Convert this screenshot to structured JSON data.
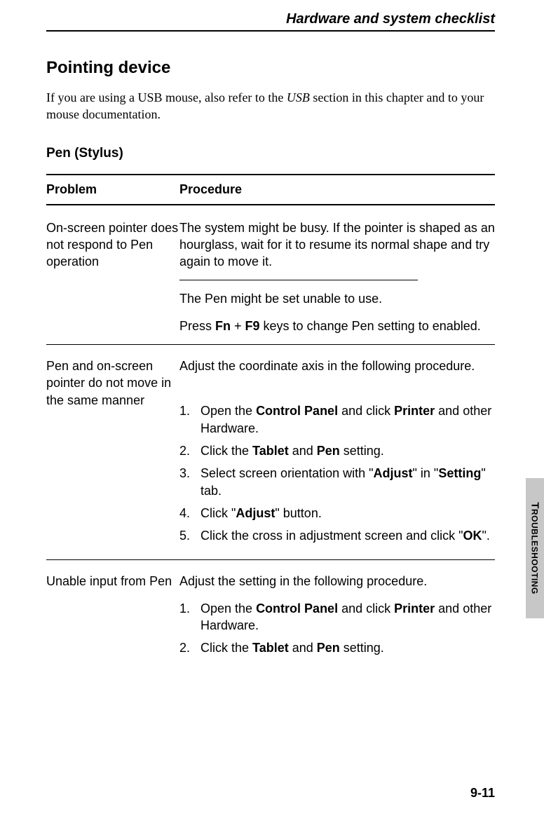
{
  "chapter_header": "Hardware and system checklist",
  "section_title": "Pointing  device",
  "intro": {
    "prefix": "If you are using a USB mouse, also refer to the ",
    "italic": "USB",
    "suffix": " section in this chapter and to your mouse documentation."
  },
  "subsection_title": "Pen (Stylus)",
  "table_header": {
    "problem": "Problem",
    "procedure": "Procedure"
  },
  "rows": [
    {
      "problem": "On-screen pointer does not respond to Pen operation",
      "procedure_para1_plain": "The system might be busy. If the pointer is shaped as an hourglass, wait for it to resume its normal shape and try again to move it.",
      "procedure_para2_plain": "The  Pen might be set unable to use.",
      "procedure_para3_prefix": "Press ",
      "procedure_para3_b1": "Fn",
      "procedure_para3_mid": " + ",
      "procedure_para3_b2": "F9",
      "procedure_para3_suffix": " keys to change Pen setting to enabled."
    },
    {
      "problem": "Pen and on-screen pointer do not move in the same manner",
      "procedure_intro": "Adjust the coordinate axis in the following procedure.",
      "steps": {
        "s1_p1": "Open the ",
        "s1_b1": "Control Panel",
        "s1_p2": " and click ",
        "s1_b2": "Printer",
        "s1_p3": " and other Hardware.",
        "s2_p1": "Click the ",
        "s2_b1": "Tablet",
        "s2_p2": " and ",
        "s2_b2": "Pen",
        "s2_p3": " setting.",
        "s3_p1": "Select screen orientation with \"",
        "s3_b1": "Adjust",
        "s3_p2": "\" in \"",
        "s3_b2": "Setting",
        "s3_p3": "\" tab.",
        "s4_p1": "Click \"",
        "s4_b1": "Adjust",
        "s4_p2": "\" button.",
        "s5_p1": "Click the cross in adjustment screen and click \"",
        "s5_b1": "OK",
        "s5_p2": "\"."
      }
    },
    {
      "problem": "Unable input from Pen",
      "procedure_intro": "Adjust the setting in the following procedure.",
      "steps": {
        "s1_p1": "Open the ",
        "s1_b1": "Control Panel",
        "s1_p2": " and click ",
        "s1_b2": "Printer",
        "s1_p3": " and other Hardware.",
        "s2_p1": "Click the ",
        "s2_b1": "Tablet",
        "s2_p2": " and ",
        "s2_b2": "Pen",
        "s2_p3": " setting."
      }
    }
  ],
  "side_tab": {
    "first_letter": "T",
    "rest": "ROUBLESHOOTING"
  },
  "page_number": "9-11"
}
